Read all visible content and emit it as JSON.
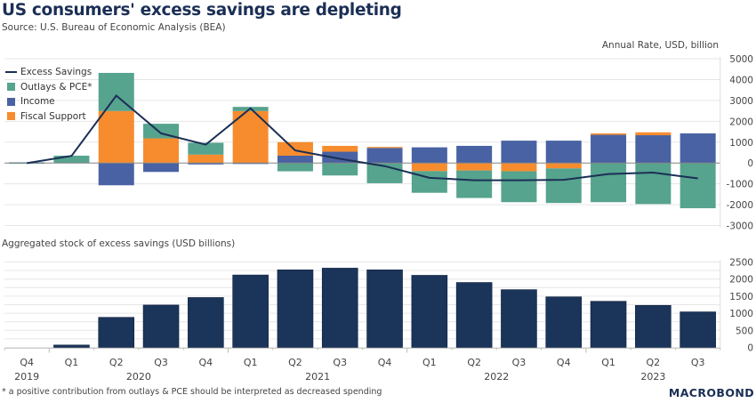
{
  "header": {
    "title": "US consumers' excess savings are depleting",
    "source": "Source: U.S. Bureau of Economic Analysis (BEA)",
    "unit_label": "Annual Rate, USD, billion",
    "lower_panel_title": "Aggregated stock of excess savings (USD billions)"
  },
  "footer": {
    "footnote": "* a positive contribution from outlays & PCE should be interpreted as decreased spending",
    "logo_text": "MACROBOND"
  },
  "legend": [
    {
      "label": "Excess Savings",
      "kind": "line",
      "color": "#1b2f55"
    },
    {
      "label": "Outlays & PCE*",
      "kind": "box",
      "color": "#56a38e"
    },
    {
      "label": "Income",
      "kind": "box",
      "color": "#4862a3"
    },
    {
      "label": "Fiscal Support",
      "kind": "box",
      "color": "#f68c2e"
    }
  ],
  "chart_data": [
    {
      "type": "bar",
      "stacked": true,
      "title": "US consumers' excess savings are depleting",
      "ylabel": "Annual Rate, USD, billion",
      "ylim": [
        -3000,
        5000
      ],
      "yticks": [
        5000,
        4000,
        3000,
        2000,
        1000,
        0,
        -1000,
        -2000,
        -3000
      ],
      "y_axis_side": "right",
      "grid": true,
      "legend_position": "top-left",
      "categories": [
        "Q4 2019",
        "Q1 2020",
        "Q2 2020",
        "Q3 2020",
        "Q4 2020",
        "Q1 2021",
        "Q2 2021",
        "Q3 2021",
        "Q4 2021",
        "Q1 2022",
        "Q2 2022",
        "Q3 2022",
        "Q4 2022",
        "Q1 2023",
        "Q2 2023",
        "Q3 2023"
      ],
      "series": [
        {
          "name": "Income",
          "color": "#4862a3",
          "values": [
            30,
            0,
            -1070,
            -430,
            -70,
            -50,
            350,
            540,
            720,
            750,
            820,
            1070,
            1070,
            1350,
            1330,
            1420
          ]
        },
        {
          "name": "Fiscal Support",
          "color": "#f68c2e",
          "values": [
            0,
            0,
            2490,
            1180,
            400,
            2490,
            650,
            280,
            50,
            -390,
            -360,
            -400,
            -260,
            70,
            140,
            0
          ]
        },
        {
          "name": "Outlays & PCE*",
          "color": "#56a38e",
          "values": [
            -40,
            350,
            1830,
            700,
            570,
            200,
            -400,
            -600,
            -970,
            -1040,
            -1320,
            -1480,
            -1660,
            -1880,
            -1970,
            -2170
          ]
        },
        {
          "name": "Excess Savings",
          "color": "#1b2f55",
          "kind": "line",
          "values": [
            -10,
            340,
            3230,
            1420,
            880,
            2620,
            600,
            200,
            -150,
            -710,
            -830,
            -830,
            -810,
            -530,
            -460,
            -740
          ]
        }
      ]
    },
    {
      "type": "bar",
      "title": "Aggregated stock of excess savings (USD billions)",
      "ylim": [
        0,
        2500
      ],
      "yticks": [
        2500,
        2000,
        1500,
        1000,
        500,
        0
      ],
      "y_axis_side": "right",
      "grid": true,
      "color": "#1b3459",
      "categories": [
        "Q4 2019",
        "Q1 2020",
        "Q2 2020",
        "Q3 2020",
        "Q4 2020",
        "Q1 2021",
        "Q2 2021",
        "Q3 2021",
        "Q4 2021",
        "Q1 2022",
        "Q2 2022",
        "Q3 2022",
        "Q4 2022",
        "Q1 2023",
        "Q2 2023",
        "Q3 2023"
      ],
      "values": [
        0,
        70,
        880,
        1240,
        1460,
        2120,
        2270,
        2320,
        2270,
        2110,
        1900,
        1690,
        1480,
        1350,
        1230,
        1040
      ]
    }
  ],
  "x_axis": {
    "quarters": [
      "Q4",
      "Q1",
      "Q2",
      "Q3",
      "Q4",
      "Q1",
      "Q2",
      "Q3",
      "Q4",
      "Q1",
      "Q2",
      "Q3",
      "Q4",
      "Q1",
      "Q2",
      "Q3"
    ],
    "years": [
      {
        "label": "2019",
        "start": 0,
        "end": 0
      },
      {
        "label": "2020",
        "start": 1,
        "end": 4
      },
      {
        "label": "2021",
        "start": 5,
        "end": 8
      },
      {
        "label": "2022",
        "start": 9,
        "end": 12
      },
      {
        "label": "2023",
        "start": 13,
        "end": 15
      }
    ]
  }
}
